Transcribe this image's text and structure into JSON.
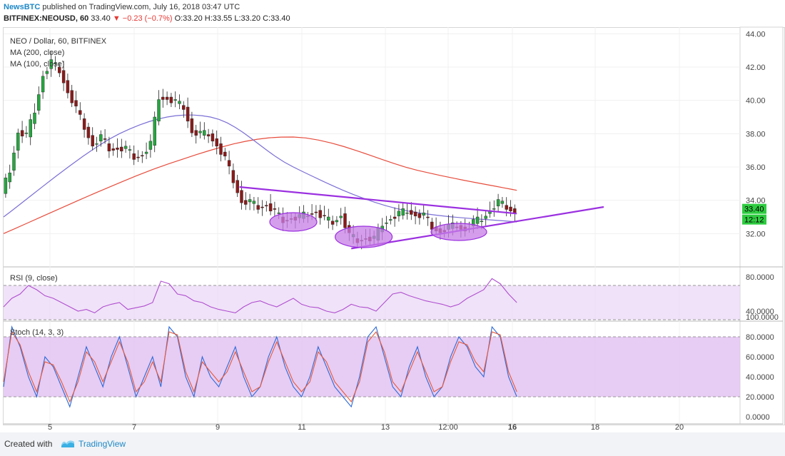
{
  "header": {
    "publisher": "NewsBTC",
    "published_text": "published on TradingView.com, July 16, 2018 03:47 UTC",
    "symbol": "BITFINEX:NEOUSD, 60",
    "o": "33.40",
    "change": "▼ −0.23 (−0.7%)",
    "ohlc_rest": "O:33.20 H:33.55 L:33.20 C:33.40"
  },
  "chart_data": [
    {
      "type": "candlestick",
      "title": "NEO / Dollar, 60, BITFINEX",
      "legend": [
        "MA (200, close)",
        "MA (100, close)"
      ],
      "ylim": [
        30.0,
        44.4
      ],
      "yticks": [
        "44.00",
        "42.00",
        "40.00",
        "38.00",
        "36.00",
        "34.00",
        "32.00"
      ],
      "xticks": [
        "5",
        "7",
        "9",
        "11",
        "13",
        "12:00",
        "16",
        "18",
        "20"
      ],
      "last_price": "33.40",
      "countdown": "12:12",
      "colors": {
        "up": "#26a640",
        "down": "#8b1a1a",
        "ma200": "#e74c3c",
        "ma100": "#7b6fd6",
        "trendline": "#9b30e0"
      },
      "price_path": [
        [
          0,
          34.4
        ],
        [
          2,
          35.8
        ],
        [
          4,
          38.2
        ],
        [
          6,
          37.8
        ],
        [
          8,
          39.4
        ],
        [
          10,
          41.6
        ],
        [
          12,
          42.2
        ],
        [
          14,
          41.8
        ],
        [
          16,
          40.6
        ],
        [
          18,
          39.4
        ],
        [
          20,
          38.4
        ],
        [
          22,
          37.4
        ],
        [
          24,
          37.7
        ],
        [
          26,
          37.1
        ],
        [
          28,
          37.2
        ],
        [
          30,
          37.0
        ],
        [
          32,
          36.6
        ],
        [
          34,
          36.8
        ],
        [
          36,
          37.3
        ],
        [
          38,
          40.2
        ],
        [
          40,
          40.2
        ],
        [
          42,
          39.8
        ],
        [
          44,
          39.6
        ],
        [
          46,
          38.2
        ],
        [
          48,
          37.9
        ],
        [
          50,
          38.0
        ],
        [
          52,
          37.4
        ],
        [
          54,
          36.4
        ],
        [
          56,
          35.2
        ],
        [
          58,
          34.0
        ],
        [
          60,
          33.8
        ],
        [
          62,
          33.6
        ],
        [
          64,
          33.8
        ],
        [
          66,
          33.2
        ],
        [
          68,
          32.8
        ],
        [
          70,
          33.0
        ],
        [
          72,
          32.9
        ],
        [
          74,
          33.2
        ],
        [
          76,
          33.4
        ],
        [
          78,
          32.8
        ],
        [
          80,
          32.7
        ],
        [
          82,
          33.2
        ],
        [
          84,
          31.8
        ],
        [
          86,
          31.6
        ],
        [
          88,
          31.8
        ],
        [
          90,
          31.6
        ],
        [
          92,
          32.6
        ],
        [
          94,
          33.0
        ],
        [
          96,
          33.1
        ],
        [
          98,
          33.4
        ],
        [
          100,
          33.2
        ],
        [
          102,
          33.0
        ],
        [
          104,
          32.4
        ],
        [
          106,
          32.2
        ],
        [
          108,
          32.3
        ],
        [
          110,
          32.5
        ],
        [
          112,
          32.3
        ],
        [
          114,
          32.6
        ],
        [
          116,
          32.9
        ],
        [
          118,
          33.5
        ],
        [
          120,
          33.8
        ],
        [
          122,
          33.6
        ],
        [
          124,
          33.4
        ]
      ],
      "ma200": [
        [
          0,
          32.0
        ],
        [
          40,
          36.2
        ],
        [
          70,
          37.8
        ],
        [
          100,
          35.8
        ],
        [
          124,
          34.6
        ]
      ],
      "ma100": [
        [
          0,
          33.0
        ],
        [
          28,
          38.0
        ],
        [
          50,
          39.0
        ],
        [
          70,
          36.0
        ],
        [
          95,
          33.5
        ],
        [
          124,
          32.7
        ]
      ],
      "trendlines": [
        [
          [
            57,
            34.8
          ],
          [
            124,
            33.2
          ]
        ],
        [
          [
            84,
            31.1
          ],
          [
            145,
            33.6
          ]
        ]
      ]
    },
    {
      "type": "line",
      "title": "RSI (9, close)",
      "ylim": [
        30,
        90
      ],
      "yticks": [
        "80.0000",
        "40.0000"
      ],
      "band": [
        30,
        70
      ],
      "color": "#b04fd0",
      "values": [
        45,
        55,
        60,
        70,
        65,
        58,
        55,
        50,
        45,
        40,
        42,
        38,
        45,
        48,
        50,
        42,
        44,
        46,
        50,
        75,
        72,
        60,
        58,
        52,
        50,
        45,
        42,
        40,
        38,
        45,
        50,
        52,
        48,
        45,
        50,
        55,
        48,
        45,
        44,
        40,
        38,
        42,
        48,
        45,
        44,
        40,
        50,
        60,
        62,
        58,
        55,
        52,
        50,
        48,
        45,
        48,
        55,
        60,
        65,
        78,
        72,
        60,
        50
      ]
    },
    {
      "type": "line",
      "title": "Stoch (14, 3, 3)",
      "ylim": [
        0,
        100
      ],
      "yticks": [
        "100.0000",
        "80.0000",
        "60.0000",
        "40.0000",
        "20.0000",
        "0.0000"
      ],
      "band": [
        20,
        80
      ],
      "series": [
        {
          "color": "#2e6ad6",
          "values": [
            30,
            90,
            70,
            40,
            20,
            60,
            50,
            30,
            10,
            40,
            70,
            50,
            30,
            60,
            80,
            50,
            20,
            40,
            60,
            30,
            90,
            80,
            40,
            20,
            60,
            40,
            30,
            50,
            70,
            40,
            20,
            30,
            60,
            80,
            50,
            30,
            20,
            40,
            70,
            50,
            30,
            20,
            10,
            40,
            80,
            90,
            60,
            30,
            20,
            50,
            70,
            40,
            20,
            30,
            60,
            80,
            70,
            50,
            40,
            90,
            80,
            40,
            20
          ]
        },
        {
          "color": "#e55a3a",
          "values": [
            35,
            85,
            72,
            45,
            25,
            55,
            52,
            35,
            15,
            35,
            65,
            55,
            35,
            55,
            75,
            55,
            25,
            35,
            55,
            35,
            85,
            82,
            45,
            25,
            55,
            45,
            35,
            45,
            65,
            45,
            25,
            30,
            55,
            75,
            55,
            35,
            25,
            35,
            65,
            55,
            35,
            25,
            15,
            35,
            75,
            85,
            65,
            35,
            25,
            45,
            65,
            45,
            25,
            30,
            55,
            75,
            72,
            55,
            45,
            85,
            82,
            45,
            25
          ]
        }
      ]
    }
  ],
  "footer": {
    "created_label": "Created with",
    "brand": "TradingView"
  }
}
